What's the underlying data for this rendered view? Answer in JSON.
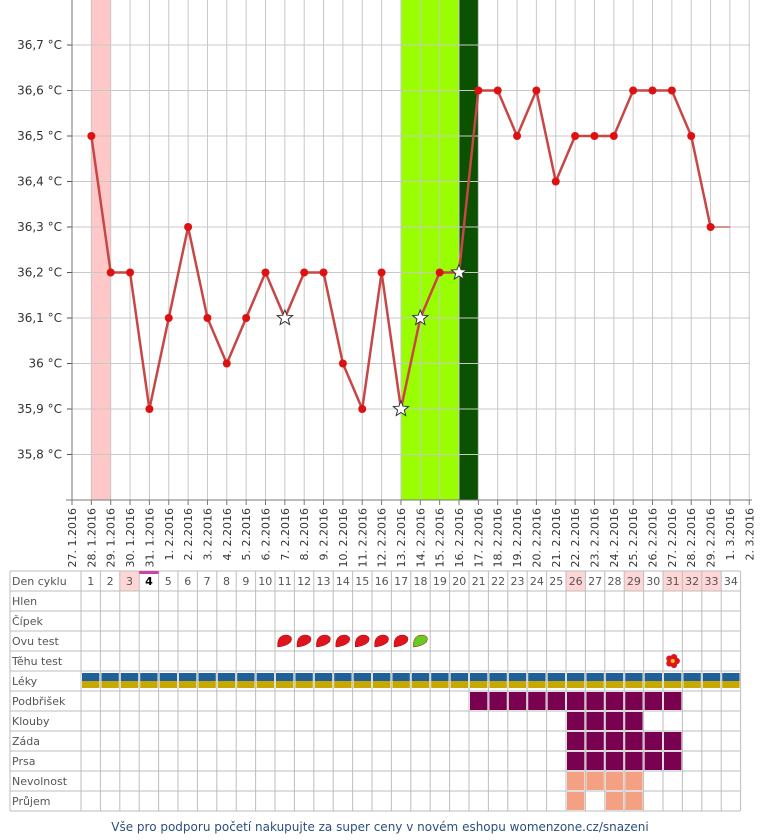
{
  "chart_data": {
    "type": "line",
    "title": "",
    "xlabel": "",
    "ylabel": "",
    "y_unit": "°C",
    "ylim": [
      35.7,
      36.8
    ],
    "y_ticks": [
      "35,8 °C",
      "35,9 °C",
      "36 °C",
      "36,1 °C",
      "36,2 °C",
      "36,3 °C",
      "36,4 °C",
      "36,5 °C",
      "36,6 °C",
      "36,7 °C"
    ],
    "y_tick_values": [
      35.8,
      35.9,
      36.0,
      36.1,
      36.2,
      36.3,
      36.4,
      36.5,
      36.6,
      36.7
    ],
    "x": [
      "27. 1.2016",
      "28. 1.2016",
      "29. 1.2016",
      "30. 1.2016",
      "31. 1.2016",
      "1. 2.2016",
      "2. 2.2016",
      "3. 2.2016",
      "4. 2.2016",
      "5. 2.2016",
      "6. 2.2016",
      "7. 2.2016",
      "8. 2.2016",
      "9. 2.2016",
      "10. 2.2016",
      "11. 2.2016",
      "12. 2.2016",
      "13. 2.2016",
      "14. 2.2016",
      "15. 2.2016",
      "16. 2.2016",
      "17. 2.2016",
      "18. 2.2016",
      "19. 2.2016",
      "20. 2.2016",
      "21. 2.2016",
      "22. 2.2016",
      "23. 2.2016",
      "24. 2.2016",
      "25. 2.2016",
      "26. 2.2016",
      "27. 2.2016",
      "28. 2.2016",
      "29. 2.2016",
      "1. 3.2016",
      "2. 3.2016"
    ],
    "series": [
      {
        "values": [
          null,
          36.5,
          36.2,
          36.2,
          35.9,
          36.1,
          36.3,
          36.1,
          36.0,
          36.1,
          36.2,
          36.1,
          36.2,
          36.2,
          36.0,
          35.9,
          36.2,
          35.9,
          36.1,
          36.2,
          36.2,
          36.6,
          36.6,
          36.5,
          36.6,
          36.4,
          36.5,
          36.5,
          36.5,
          36.6,
          36.6,
          36.6,
          36.5,
          36.3,
          null,
          null
        ]
      }
    ],
    "star_points": [
      11,
      17,
      18,
      20
    ],
    "bands": [
      {
        "from": 1,
        "to": 2,
        "color": "#ffc8c8"
      },
      {
        "from": 17,
        "to": 21,
        "color": "#99ff00"
      },
      {
        "from": 20,
        "to": 21,
        "color": "#0a5200"
      }
    ],
    "colors": {
      "line": "#c84646",
      "marker": "#dd1111",
      "grid": "#c8c8c8"
    },
    "grid": true
  },
  "table": {
    "rows": [
      "Den cyklu",
      "Hlen",
      "Čípek",
      "Ovu test",
      "Těhu test",
      "Léky",
      "Podbřišek",
      "Klouby",
      "Záda",
      "Prsa",
      "Nevolnost",
      "Průjem"
    ],
    "cycle_days": [
      "1",
      "2",
      "3",
      "4",
      "5",
      "6",
      "7",
      "8",
      "9",
      "10",
      "11",
      "12",
      "13",
      "14",
      "15",
      "16",
      "17",
      "18",
      "19",
      "20",
      "21",
      "22",
      "23",
      "24",
      "25",
      "26",
      "27",
      "28",
      "29",
      "30",
      "31",
      "32",
      "33",
      "34"
    ],
    "pink_days": [
      "3",
      "26",
      "29",
      "31",
      "32",
      "33"
    ],
    "current_day": "4",
    "ovu_test_red_days": [
      11,
      12,
      13,
      14,
      15,
      16,
      17
    ],
    "ovu_test_green_days": [
      18
    ],
    "tehu_test_flower_days": [
      31
    ],
    "leky_days": [
      1,
      2,
      3,
      4,
      5,
      6,
      7,
      8,
      9,
      10,
      11,
      12,
      13,
      14,
      15,
      16,
      17,
      18,
      19,
      20,
      21,
      22,
      23,
      24,
      25,
      26,
      27,
      28,
      29,
      30,
      31,
      32,
      33,
      34
    ],
    "symptom_color": "#7a0050",
    "nausea_color": "#f4a082",
    "podbrisek_days": [
      21,
      22,
      23,
      24,
      25,
      26,
      27,
      28,
      29,
      30,
      31
    ],
    "klouby_days": [
      26,
      27,
      28,
      29
    ],
    "zada_days": [
      26,
      27,
      28,
      29,
      30,
      31
    ],
    "prsa_days": [
      26,
      27,
      28,
      29,
      30,
      31
    ],
    "nevolnost_days": [
      26,
      27,
      28,
      29
    ],
    "prujem_days": [
      26,
      28,
      29
    ]
  },
  "footer": "Vše pro podporu početí nakupujte za super ceny v novém eshopu womenzone.cz/snazeni"
}
